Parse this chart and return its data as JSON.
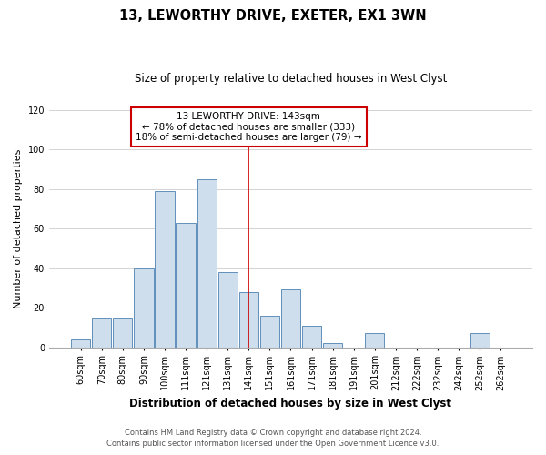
{
  "title": "13, LEWORTHY DRIVE, EXETER, EX1 3WN",
  "subtitle": "Size of property relative to detached houses in West Clyst",
  "xlabel": "Distribution of detached houses by size in West Clyst",
  "ylabel": "Number of detached properties",
  "bar_labels": [
    "60sqm",
    "70sqm",
    "80sqm",
    "90sqm",
    "100sqm",
    "111sqm",
    "121sqm",
    "131sqm",
    "141sqm",
    "151sqm",
    "161sqm",
    "171sqm",
    "181sqm",
    "191sqm",
    "201sqm",
    "212sqm",
    "222sqm",
    "232sqm",
    "242sqm",
    "252sqm",
    "262sqm"
  ],
  "bar_values": [
    4,
    15,
    15,
    40,
    79,
    63,
    85,
    38,
    28,
    16,
    29,
    11,
    2,
    0,
    7,
    0,
    0,
    0,
    0,
    7,
    0
  ],
  "bar_color": "#cfdeed",
  "bar_edge_color": "#6090bb",
  "vline_x_index": 8,
  "vline_color": "#cc0000",
  "annotation_text": "13 LEWORTHY DRIVE: 143sqm\n← 78% of detached houses are smaller (333)\n18% of semi-detached houses are larger (79) →",
  "annotation_box_color": "#ffffff",
  "annotation_box_edge": "#cc0000",
  "ylim": [
    0,
    120
  ],
  "yticks": [
    0,
    20,
    40,
    60,
    80,
    100,
    120
  ],
  "footer_line1": "Contains HM Land Registry data © Crown copyright and database right 2024.",
  "footer_line2": "Contains public sector information licensed under the Open Government Licence v3.0.",
  "background_color": "#ffffff",
  "grid_color": "#cccccc",
  "title_fontsize": 10.5,
  "subtitle_fontsize": 8.5,
  "xlabel_fontsize": 8.5,
  "ylabel_fontsize": 8,
  "tick_fontsize": 7,
  "annotation_fontsize": 7.5,
  "footer_fontsize": 6
}
